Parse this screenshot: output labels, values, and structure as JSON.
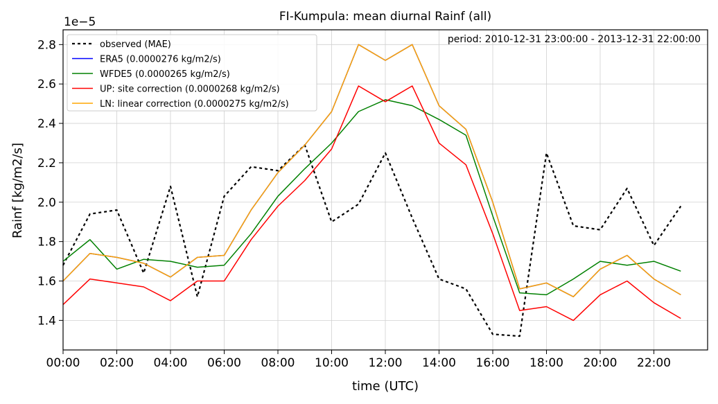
{
  "chart_data": {
    "type": "line",
    "title": "FI-Kumpula: mean diurnal Rainf (all)",
    "xlabel": "time (UTC)",
    "ylabel": "Rainf [kg/m2/s]",
    "y_offset_label": "1e−5",
    "annotation": "period: 2010-12-31 23:00:00 - 2013-12-31 22:00:00",
    "x": [
      0,
      1,
      2,
      3,
      4,
      5,
      6,
      7,
      8,
      9,
      10,
      11,
      12,
      13,
      14,
      15,
      16,
      17,
      18,
      19,
      20,
      21,
      22,
      23
    ],
    "xlim": [
      0,
      24
    ],
    "ylim": [
      1.25,
      2.875
    ],
    "y_scale_exponent": -5,
    "x_ticks": [
      0,
      2,
      4,
      6,
      8,
      10,
      12,
      14,
      16,
      18,
      20,
      22
    ],
    "x_tick_labels": [
      "00:00",
      "02:00",
      "04:00",
      "06:00",
      "08:00",
      "10:00",
      "12:00",
      "14:00",
      "16:00",
      "18:00",
      "20:00",
      "22:00"
    ],
    "y_ticks": [
      1.4,
      1.6,
      1.8,
      2.0,
      2.2,
      2.4,
      2.6,
      2.8
    ],
    "y_tick_labels": [
      "1.4",
      "1.6",
      "1.8",
      "2.0",
      "2.2",
      "2.4",
      "2.6",
      "2.8"
    ],
    "grid": true,
    "legend_position": "top-left",
    "series": [
      {
        "name": "observed (MAE)",
        "color": "#000000",
        "dashed": true,
        "values": [
          1.68,
          1.94,
          1.96,
          1.64,
          2.08,
          1.52,
          2.03,
          2.18,
          2.16,
          2.29,
          1.9,
          1.99,
          2.25,
          1.92,
          1.61,
          1.56,
          1.33,
          1.32,
          2.25,
          1.88,
          1.86,
          2.07,
          1.78,
          1.98
        ]
      },
      {
        "name": "ERA5 (0.0000276 kg/m2/s)",
        "color": "#0000ff",
        "dashed": false,
        "values": [
          1.6,
          1.74,
          1.72,
          1.69,
          1.62,
          1.72,
          1.73,
          1.96,
          2.15,
          2.29,
          2.46,
          2.8,
          2.72,
          2.8,
          2.49,
          2.37,
          2.0,
          1.56,
          1.59,
          1.52,
          1.66,
          1.73,
          1.61,
          1.53
        ]
      },
      {
        "name": "WFDE5 (0.0000265 kg/m2/s)",
        "color": "#008000",
        "dashed": false,
        "values": [
          1.7,
          1.81,
          1.66,
          1.71,
          1.7,
          1.67,
          1.68,
          1.84,
          2.03,
          2.17,
          2.3,
          2.46,
          2.52,
          2.49,
          2.42,
          2.34,
          1.93,
          1.54,
          1.53,
          1.61,
          1.7,
          1.68,
          1.7,
          1.65
        ]
      },
      {
        "name": "UP: site correction (0.0000268 kg/m2/s)",
        "color": "#ff0000",
        "dashed": false,
        "values": [
          1.48,
          1.61,
          1.59,
          1.57,
          1.5,
          1.6,
          1.6,
          1.81,
          1.98,
          2.11,
          2.27,
          2.59,
          2.51,
          2.59,
          2.3,
          2.19,
          1.84,
          1.45,
          1.47,
          1.4,
          1.53,
          1.6,
          1.49,
          1.41
        ]
      },
      {
        "name": "LN: linear correction (0.0000275 kg/m2/s)",
        "color": "#ffa500",
        "dashed": false,
        "values": [
          1.6,
          1.74,
          1.72,
          1.69,
          1.62,
          1.72,
          1.73,
          1.96,
          2.15,
          2.29,
          2.46,
          2.8,
          2.72,
          2.8,
          2.49,
          2.37,
          2.0,
          1.56,
          1.59,
          1.52,
          1.66,
          1.73,
          1.61,
          1.53
        ]
      }
    ]
  }
}
